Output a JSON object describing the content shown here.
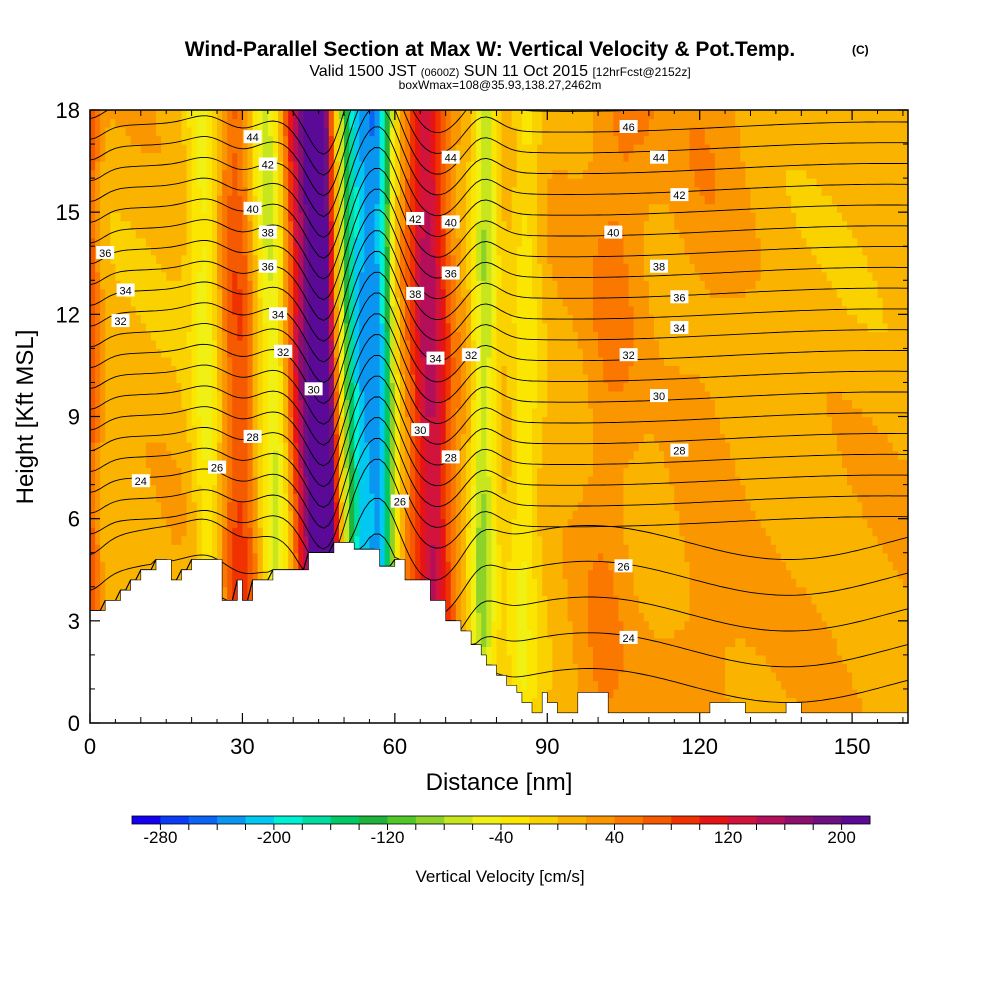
{
  "title": "Wind-Parallel Section at Max W: Vertical Velocity & Pot.Temp.",
  "title_mark": "(C)",
  "subtitle": {
    "prefix": "Valid 1500 JST",
    "utc": "(0600Z)",
    "date": "SUN 11 Oct 2015",
    "forecast": "[12hrFcst@2152z]",
    "box": "boxWmax=108@35.93,138.27,2462m"
  },
  "chart_data": {
    "type": "heatmap",
    "xlabel": "Distance [nm]",
    "ylabel": "Height [Kft MSL]",
    "xlim": [
      0,
      161
    ],
    "ylim": [
      0,
      18
    ],
    "xticks": [
      0,
      30,
      60,
      90,
      120,
      150
    ],
    "yticks": [
      0,
      3,
      6,
      9,
      12,
      15,
      18
    ],
    "colorbar": {
      "label": "Vertical Velocity [cm/s]",
      "ticks": [
        -280,
        -200,
        -120,
        -40,
        40,
        120,
        200
      ],
      "range": [
        -300,
        220
      ],
      "colors": [
        "#1400f0",
        "#0a3cf5",
        "#0a64f5",
        "#0a96f0",
        "#00c8f0",
        "#00f0d2",
        "#00dca0",
        "#00c864",
        "#1eb43c",
        "#50c828",
        "#8cd228",
        "#c8e61e",
        "#f0f014",
        "#fae600",
        "#fad200",
        "#fab400",
        "#fa9600",
        "#fa7800",
        "#f55a00",
        "#f03200",
        "#e61414",
        "#d2143c",
        "#b40f5a",
        "#8c0f6e",
        "#6e0f82",
        "#5a0a96"
      ]
    },
    "features": {
      "terrain_profile": {
        "x": [
          0,
          3,
          3,
          6,
          6,
          8,
          8,
          10,
          10,
          13,
          13,
          16,
          16,
          18,
          18,
          20,
          20,
          26,
          26,
          29,
          29,
          30,
          30,
          32,
          32,
          36,
          36,
          43,
          43,
          48,
          48,
          52,
          52,
          57,
          57,
          60,
          60,
          62,
          62,
          67,
          67,
          70,
          70,
          73,
          73,
          75,
          75,
          77,
          77,
          78,
          78,
          80,
          80,
          82,
          82,
          84,
          84,
          85,
          85,
          87,
          87,
          89,
          89,
          90,
          90,
          92,
          92,
          96,
          96,
          102,
          102,
          122,
          122,
          129,
          129,
          137,
          137,
          140,
          140,
          161
        ],
        "y": [
          3.3,
          3.3,
          3.6,
          3.6,
          3.9,
          3.9,
          4.2,
          4.2,
          4.5,
          4.5,
          4.8,
          4.8,
          4.2,
          4.2,
          4.5,
          4.5,
          4.8,
          4.8,
          3.6,
          3.6,
          4.2,
          4.2,
          3.6,
          3.6,
          4.2,
          4.2,
          4.5,
          4.5,
          5.0,
          5.0,
          5.3,
          5.3,
          5.1,
          5.1,
          4.6,
          4.6,
          4.8,
          4.8,
          4.2,
          4.2,
          3.6,
          3.6,
          3.0,
          3.0,
          2.7,
          2.7,
          2.3,
          2.3,
          2.0,
          2.0,
          1.7,
          1.7,
          1.4,
          1.4,
          1.1,
          1.1,
          0.9,
          0.9,
          0.6,
          0.6,
          0.3,
          0.3,
          0.9,
          0.9,
          0.6,
          0.6,
          0.3,
          0.3,
          0.9,
          0.9,
          0.3,
          0.3,
          0.6,
          0.6,
          0.3,
          0.3,
          0.6,
          0.6,
          0.3,
          0.3
        ]
      },
      "velocity_bands": [
        {
          "x": 0,
          "x_top": 0,
          "halfwidth": 2,
          "value": 60
        },
        {
          "x": 24,
          "x_top": 22,
          "halfwidth": 3,
          "value": -60
        },
        {
          "x": 30,
          "x_top": 29,
          "halfwidth": 4,
          "value": 70
        },
        {
          "x": 38,
          "x_top": 35,
          "halfwidth": 4,
          "value": -90
        },
        {
          "x": 44,
          "x_top": 41,
          "halfwidth": 4,
          "value": 150
        },
        {
          "x": 47,
          "x_top": 45,
          "halfwidth": 2.5,
          "value": 215
        },
        {
          "x": 54,
          "x_top": 53,
          "halfwidth": 4,
          "value": -220
        },
        {
          "x": 58,
          "x_top": 57,
          "halfwidth": 2.5,
          "value": -140
        },
        {
          "x": 68,
          "x_top": 66,
          "halfwidth": 4,
          "value": 130
        },
        {
          "x": 77,
          "x_top": 78,
          "halfwidth": 2.5,
          "value": -90
        },
        {
          "x": 85,
          "x_top": 86,
          "halfwidth": 3,
          "value": -45
        },
        {
          "x": 100,
          "x_top": 105,
          "halfwidth": 6,
          "value": 30
        },
        {
          "x": 120,
          "x_top": 122,
          "halfwidth": 8,
          "value": 18
        }
      ],
      "isentropes": [
        22,
        23,
        24,
        25,
        26,
        27,
        28,
        29,
        30,
        31,
        32,
        33,
        34,
        35,
        36,
        37,
        38,
        39,
        40,
        41,
        42,
        43,
        44,
        45,
        46,
        47
      ],
      "isentrope_labels": [
        {
          "x": 10,
          "y": 7.1,
          "text": "24"
        },
        {
          "x": 25,
          "y": 7.5,
          "text": "26"
        },
        {
          "x": 32,
          "y": 8.4,
          "text": "28"
        },
        {
          "x": 44,
          "y": 9.8,
          "text": "30"
        },
        {
          "x": 38,
          "y": 10.9,
          "text": "32"
        },
        {
          "x": 37,
          "y": 12.0,
          "text": "34"
        },
        {
          "x": 35,
          "y": 13.4,
          "text": "36"
        },
        {
          "x": 35,
          "y": 14.4,
          "text": "38"
        },
        {
          "x": 32,
          "y": 15.1,
          "text": "40"
        },
        {
          "x": 35,
          "y": 16.4,
          "text": "42"
        },
        {
          "x": 32,
          "y": 17.2,
          "text": "44"
        },
        {
          "x": 3,
          "y": 13.8,
          "text": "36"
        },
        {
          "x": 7,
          "y": 12.7,
          "text": "34"
        },
        {
          "x": 6,
          "y": 11.8,
          "text": "32"
        },
        {
          "x": 64,
          "y": 12.6,
          "text": "38"
        },
        {
          "x": 64,
          "y": 14.8,
          "text": "42"
        },
        {
          "x": 71,
          "y": 13.2,
          "text": "36"
        },
        {
          "x": 71,
          "y": 14.7,
          "text": "40"
        },
        {
          "x": 71,
          "y": 16.6,
          "text": "44"
        },
        {
          "x": 68,
          "y": 10.7,
          "text": "34"
        },
        {
          "x": 75,
          "y": 10.8,
          "text": "32"
        },
        {
          "x": 65,
          "y": 8.6,
          "text": "30"
        },
        {
          "x": 71,
          "y": 7.8,
          "text": "28"
        },
        {
          "x": 61,
          "y": 6.5,
          "text": "26"
        },
        {
          "x": 106,
          "y": 17.5,
          "text": "46"
        },
        {
          "x": 112,
          "y": 16.6,
          "text": "44"
        },
        {
          "x": 116,
          "y": 15.5,
          "text": "42"
        },
        {
          "x": 103,
          "y": 14.4,
          "text": "40"
        },
        {
          "x": 112,
          "y": 13.4,
          "text": "38"
        },
        {
          "x": 116,
          "y": 12.5,
          "text": "36"
        },
        {
          "x": 116,
          "y": 11.6,
          "text": "34"
        },
        {
          "x": 106,
          "y": 10.8,
          "text": "32"
        },
        {
          "x": 112,
          "y": 9.6,
          "text": "30"
        },
        {
          "x": 116,
          "y": 8.0,
          "text": "28"
        },
        {
          "x": 105,
          "y": 4.6,
          "text": "26"
        },
        {
          "x": 106,
          "y": 2.5,
          "text": "24"
        }
      ]
    }
  }
}
